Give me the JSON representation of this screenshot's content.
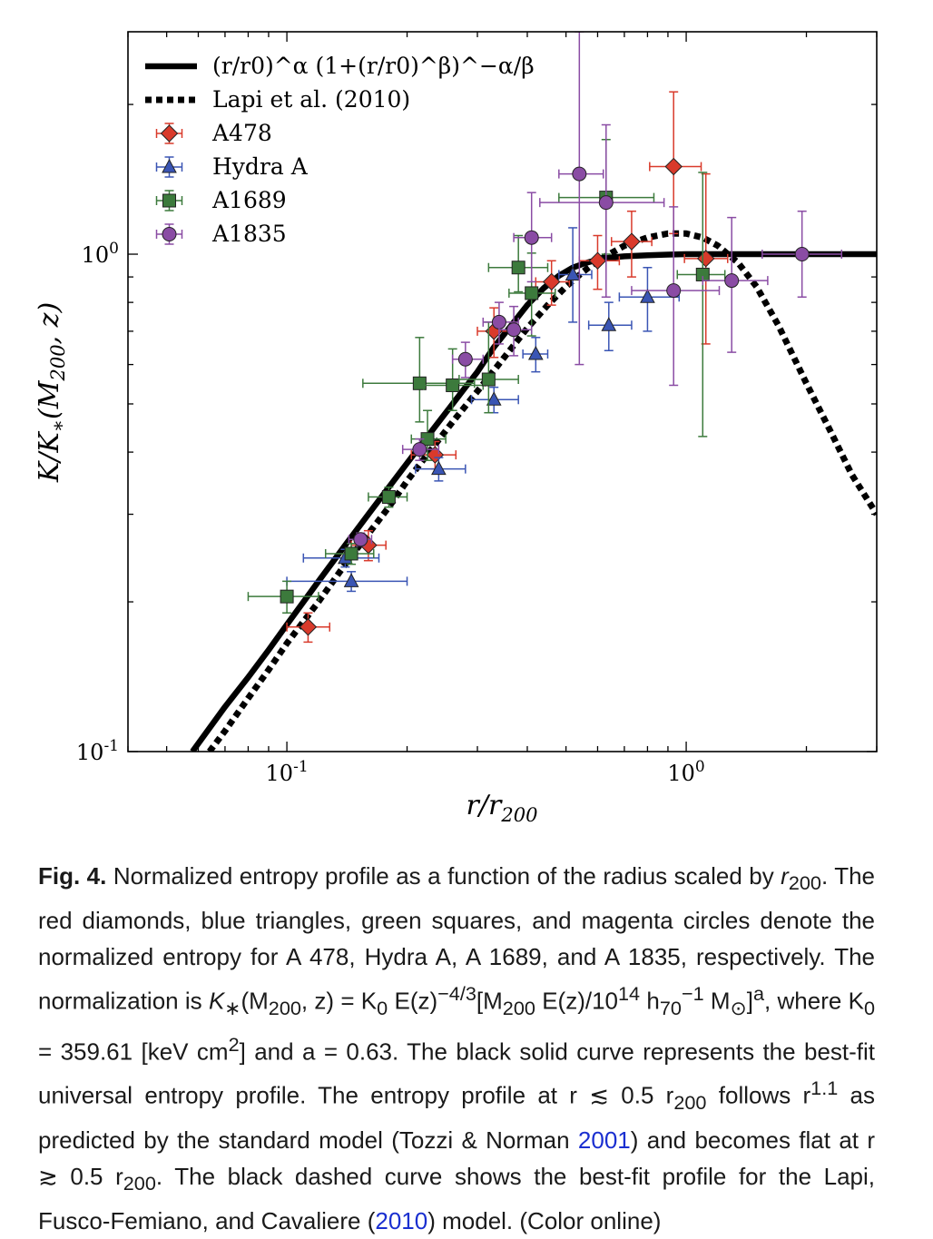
{
  "chart_data": {
    "type": "scatter",
    "xscale": "log",
    "yscale": "log",
    "xlim": [
      0.04,
      3.0
    ],
    "ylim": [
      0.1,
      2.8
    ],
    "xticks": [
      {
        "value": 0.1,
        "base": "10",
        "exp": "-1"
      },
      {
        "value": 1.0,
        "base": "10",
        "exp": "0"
      }
    ],
    "yticks": [
      {
        "value": 0.1,
        "base": "10",
        "exp": "-1"
      },
      {
        "value": 1.0,
        "base": "10",
        "exp": "0"
      }
    ],
    "xlabel": "r/r200",
    "ylabel": "K/K*(M200, z)",
    "legend_position": "top-left",
    "curves": [
      {
        "label": "(r/r0)^α (1+(r/r0)^β)^−α/β",
        "style": "solid",
        "x": [
          0.058,
          0.07,
          0.08,
          0.09,
          0.1,
          0.12,
          0.14,
          0.16,
          0.18,
          0.2,
          0.22,
          0.25,
          0.28,
          0.3,
          0.33,
          0.36,
          0.4,
          0.44,
          0.48,
          0.52,
          0.56,
          0.6,
          0.65,
          0.7,
          0.8,
          0.9,
          1.0,
          1.2,
          1.5,
          2.0,
          3.0
        ],
        "y": [
          0.1,
          0.123,
          0.141,
          0.16,
          0.18,
          0.22,
          0.26,
          0.3,
          0.34,
          0.38,
          0.42,
          0.48,
          0.54,
          0.58,
          0.65,
          0.71,
          0.79,
          0.855,
          0.905,
          0.94,
          0.96,
          0.975,
          0.985,
          0.99,
          0.995,
          0.998,
          1.0,
          1.0,
          1.0,
          1.0,
          1.0
        ]
      },
      {
        "label": "Lapi et al. (2010)",
        "style": "dashed",
        "x": [
          0.064,
          0.07,
          0.08,
          0.09,
          0.1,
          0.12,
          0.14,
          0.16,
          0.18,
          0.2,
          0.23,
          0.26,
          0.3,
          0.35,
          0.4,
          0.45,
          0.5,
          0.55,
          0.6,
          0.7,
          0.8,
          0.9,
          1.0,
          1.1,
          1.2,
          1.35,
          1.5,
          1.7,
          2.0,
          2.3,
          2.6,
          3.0
        ],
        "y": [
          0.1,
          0.11,
          0.128,
          0.146,
          0.165,
          0.2,
          0.238,
          0.274,
          0.31,
          0.35,
          0.405,
          0.46,
          0.53,
          0.62,
          0.71,
          0.79,
          0.86,
          0.92,
          0.97,
          1.04,
          1.08,
          1.1,
          1.1,
          1.08,
          1.04,
          0.96,
          0.86,
          0.72,
          0.55,
          0.44,
          0.36,
          0.3
        ]
      }
    ],
    "series": [
      {
        "name": "A478",
        "marker": "diamond",
        "color": "#d93a2b",
        "points": [
          {
            "x": 0.113,
            "y": 0.178,
            "xerr": [
              0.013,
              0.015
            ],
            "yerr": [
              0.012,
              0.012
            ]
          },
          {
            "x": 0.16,
            "y": 0.26,
            "xerr": [
              0.015,
              0.017
            ],
            "yerr": [
              0.018,
              0.018
            ]
          },
          {
            "x": 0.235,
            "y": 0.395,
            "xerr": [
              0.03,
              0.03
            ],
            "yerr": [
              0.025,
              0.025
            ]
          },
          {
            "x": 0.33,
            "y": 0.7,
            "xerr": [
              0.03,
              0.035
            ],
            "yerr": [
              0.08,
              0.08
            ]
          },
          {
            "x": 0.46,
            "y": 0.88,
            "xerr": [
              0.04,
              0.05
            ],
            "yerr": [
              0.09,
              0.09
            ]
          },
          {
            "x": 0.6,
            "y": 0.97,
            "xerr": [
              0.06,
              0.08
            ],
            "yerr": [
              0.12,
              0.12
            ]
          },
          {
            "x": 0.73,
            "y": 1.06,
            "xerr": [
              0.08,
              0.09
            ],
            "yerr": [
              0.16,
              0.16
            ]
          },
          {
            "x": 0.93,
            "y": 1.5,
            "xerr": [
              0.12,
              0.16
            ],
            "yerr": [
              0.4,
              0.62
            ]
          },
          {
            "x": 1.12,
            "y": 0.98,
            "xerr": [
              0.13,
              0.15
            ],
            "yerr": [
              0.32,
              0.47
            ]
          }
        ]
      },
      {
        "name": "Hydra A",
        "marker": "triangle",
        "color": "#3a55b4",
        "points": [
          {
            "x": 0.14,
            "y": 0.245,
            "xerr": [
              0.03,
              0.03
            ],
            "yerr": [
              0.01,
              0.01
            ]
          },
          {
            "x": 0.145,
            "y": 0.22,
            "xerr": [
              0.045,
              0.055
            ],
            "yerr": [
              0.01,
              0.01
            ]
          },
          {
            "x": 0.24,
            "y": 0.37,
            "xerr": [
              0.03,
              0.04
            ],
            "yerr": [
              0.02,
              0.02
            ]
          },
          {
            "x": 0.33,
            "y": 0.51,
            "xerr": [
              0.04,
              0.05
            ],
            "yerr": [
              0.03,
              0.03
            ]
          },
          {
            "x": 0.42,
            "y": 0.63,
            "xerr": [
              0.03,
              0.03
            ],
            "yerr": [
              0.05,
              0.05
            ]
          },
          {
            "x": 0.52,
            "y": 0.91,
            "xerr": [
              0.04,
              0.06
            ],
            "yerr": [
              0.18,
              0.22
            ]
          },
          {
            "x": 0.64,
            "y": 0.72,
            "xerr": [
              0.07,
              0.09
            ],
            "yerr": [
              0.08,
              0.08
            ]
          },
          {
            "x": 0.8,
            "y": 0.82,
            "xerr": [
              0.12,
              0.16
            ],
            "yerr": [
              0.12,
              0.12
            ]
          }
        ]
      },
      {
        "name": "A1689",
        "marker": "square",
        "color": "#3c7a3c",
        "points": [
          {
            "x": 0.1,
            "y": 0.205,
            "xerr": [
              0.02,
              0.02
            ],
            "yerr": [
              0.015,
              0.015
            ]
          },
          {
            "x": 0.145,
            "y": 0.25,
            "xerr": [
              0.02,
              0.02
            ],
            "yerr": [
              0.012,
              0.012
            ]
          },
          {
            "x": 0.18,
            "y": 0.325,
            "xerr": [
              0.02,
              0.02
            ],
            "yerr": [
              0.015,
              0.015
            ]
          },
          {
            "x": 0.215,
            "y": 0.55,
            "xerr": [
              0.06,
              0.08
            ],
            "yerr": [
              0.09,
              0.13
            ]
          },
          {
            "x": 0.225,
            "y": 0.425,
            "xerr": [
              0.02,
              0.025
            ],
            "yerr": [
              0.04,
              0.06
            ]
          },
          {
            "x": 0.26,
            "y": 0.545,
            "xerr": [
              0.04,
              0.05
            ],
            "yerr": [
              0.06,
              0.1
            ]
          },
          {
            "x": 0.32,
            "y": 0.56,
            "xerr": [
              0.05,
              0.06
            ],
            "yerr": [
              0.08,
              0.17
            ]
          },
          {
            "x": 0.38,
            "y": 0.94,
            "xerr": [
              0.06,
              0.07
            ],
            "yerr": [
              0.1,
              0.15
            ]
          },
          {
            "x": 0.41,
            "y": 0.835,
            "xerr": [
              0.05,
              0.06
            ],
            "yerr": [
              0.15,
              0.17
            ]
          },
          {
            "x": 0.63,
            "y": 1.3,
            "xerr": [
              0.15,
              0.2
            ],
            "yerr": [
              0.3,
              0.4
            ]
          },
          {
            "x": 1.1,
            "y": 0.91,
            "xerr": [
              0.15,
              0.15
            ],
            "yerr": [
              0.48,
              0.55
            ]
          }
        ]
      },
      {
        "name": "A1835",
        "marker": "circle",
        "color": "#8a4ca4",
        "points": [
          {
            "x": 0.153,
            "y": 0.267,
            "xerr": [
              0.01,
              0.01
            ],
            "yerr": [
              0.008,
              0.008
            ]
          },
          {
            "x": 0.215,
            "y": 0.405,
            "xerr": [
              0.02,
              0.025
            ],
            "yerr": [
              0.02,
              0.02
            ]
          },
          {
            "x": 0.28,
            "y": 0.615,
            "xerr": [
              0.02,
              0.03
            ],
            "yerr": [
              0.05,
              0.05
            ]
          },
          {
            "x": 0.34,
            "y": 0.73,
            "xerr": [
              0.03,
              0.04
            ],
            "yerr": [
              0.07,
              0.07
            ]
          },
          {
            "x": 0.37,
            "y": 0.705,
            "xerr": [
              0.03,
              0.04
            ],
            "yerr": [
              0.08,
              0.08
            ]
          },
          {
            "x": 0.41,
            "y": 1.08,
            "xerr": [
              0.04,
              0.05
            ],
            "yerr": [
              0.2,
              0.25
            ]
          },
          {
            "x": 0.54,
            "y": 1.45,
            "xerr": [
              0.06,
              0.08
            ],
            "yerr": [
              0.85,
              1.35
            ]
          },
          {
            "x": 0.63,
            "y": 1.27,
            "xerr": [
              0.2,
              0.25
            ],
            "yerr": [
              0.45,
              0.55
            ]
          },
          {
            "x": 0.93,
            "y": 0.845,
            "xerr": [
              0.2,
              0.28
            ],
            "yerr": [
              0.3,
              0.4
            ]
          },
          {
            "x": 1.3,
            "y": 0.885,
            "xerr": [
              0.2,
              0.3
            ],
            "yerr": [
              0.25,
              0.3
            ]
          },
          {
            "x": 1.95,
            "y": 1.0,
            "xerr": [
              0.4,
              0.5
            ],
            "yerr": [
              0.18,
              0.22
            ]
          }
        ]
      }
    ]
  },
  "caption": {
    "label": "Fig. 4.",
    "text1": " Normalized entropy profile as a function of the radius scaled by ",
    "r200_a": "r",
    "r200_a_sub": "200",
    "text2": ". The red diamonds, blue triangles, green squares, and magenta circles denote the normalized entropy for A 478, Hydra A, A 1689, and A 1835, respectively. The normalization is ",
    "kstar": "K",
    "kstar_sub": "∗",
    "norm1": "(M",
    "norm1_sub": "200",
    "norm2": ", z) = K",
    "norm2_sub": "0",
    "norm3": " E(z)",
    "norm3_sup": "−4/3",
    "norm4": "[M",
    "norm4_sub": "200",
    "norm5": " E(z)/10",
    "norm5_sup": "14",
    "norm6": " h",
    "norm6_sub": "70",
    "norm6_sup": "−1",
    "norm7": " M",
    "norm7_sub": "⊙",
    "norm8": "]",
    "norm8_sup": "a",
    "text3": ", where K",
    "text3_sub": "0",
    "text4": " = 359.61 [keV cm",
    "text4_sup": "2",
    "text5": "] and a = 0.63. The black solid curve represents the best-fit universal entropy profile. The entropy profile at r ≲ 0.5 r",
    "text5_sub": "200",
    "text6": " follows r",
    "text6_sup": "1.1",
    "text7": " as predicted by the standard model (Tozzi & Norman ",
    "cite1": "2001",
    "text8": ") and becomes flat at r ≳ 0.5 r",
    "text8_sub": "200",
    "text9": ". The black dashed curve shows the best-fit profile for the Lapi, Fusco-Femiano, and Cavaliere (",
    "cite2": "2010",
    "text10": ") model. (Color online)"
  }
}
